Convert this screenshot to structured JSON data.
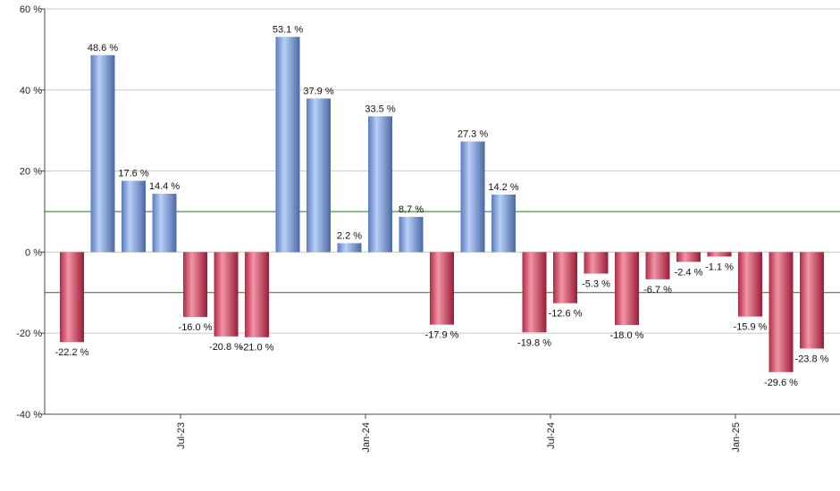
{
  "chart_data": {
    "type": "bar",
    "title": "",
    "xlabel": "",
    "ylabel": "",
    "ylim": [
      -40,
      60
    ],
    "y_ticks": [
      "60 %",
      "40 %",
      "20 %",
      "0 %",
      "-20 %",
      "-40 %"
    ],
    "y_tick_values": [
      60,
      40,
      20,
      0,
      -20,
      -40
    ],
    "grid": true,
    "reference_lines": [
      10,
      -10
    ],
    "x_tick_labels": [
      {
        "label": "Jul-23",
        "after_index": 3
      },
      {
        "label": "Jan-24",
        "after_index": 9
      },
      {
        "label": "Jul-24",
        "after_index": 15
      },
      {
        "label": "Jan-25",
        "after_index": 21
      }
    ],
    "values": [
      -22.2,
      48.6,
      17.6,
      14.4,
      -16.0,
      -20.8,
      -21.0,
      53.1,
      37.9,
      2.2,
      33.5,
      8.7,
      -17.9,
      27.3,
      14.2,
      -19.8,
      -12.6,
      -5.3,
      -18.0,
      -6.7,
      -2.4,
      -1.1,
      -15.9,
      -29.6,
      -23.8
    ],
    "labels": [
      "-22.2 %",
      "48.6 %",
      "17.6 %",
      "14.4 %",
      "-16.0 %",
      "-20.8 %",
      "-21.0 %",
      "53.1 %",
      "37.9 %",
      "2.2 %",
      "33.5 %",
      "8.7 %",
      "-17.9 %",
      "27.3 %",
      "14.2 %",
      "-19.8 %",
      "-12.6 %",
      "-5.3 %",
      "-18.0 %",
      "-6.7 %",
      "-2.4 %",
      "-1.1 %",
      "-15.9 %",
      "-29.6 %",
      "-23.8 %"
    ],
    "colors": {
      "positive_light": "#b4cdf5",
      "positive_dark": "#4f6fae",
      "negative_light": "#f08ca0",
      "negative_dark": "#a8203c",
      "grid": "#c8c8c8",
      "reference": "#1a7a1a",
      "axis": "#444444"
    }
  }
}
